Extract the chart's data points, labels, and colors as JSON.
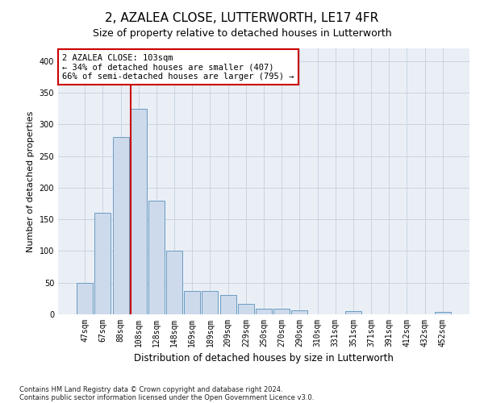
{
  "title": "2, AZALEA CLOSE, LUTTERWORTH, LE17 4FR",
  "subtitle": "Size of property relative to detached houses in Lutterworth",
  "xlabel": "Distribution of detached houses by size in Lutterworth",
  "ylabel": "Number of detached properties",
  "footnote1": "Contains HM Land Registry data © Crown copyright and database right 2024.",
  "footnote2": "Contains public sector information licensed under the Open Government Licence v3.0.",
  "bar_labels": [
    "47sqm",
    "67sqm",
    "88sqm",
    "108sqm",
    "128sqm",
    "148sqm",
    "169sqm",
    "189sqm",
    "209sqm",
    "229sqm",
    "250sqm",
    "270sqm",
    "290sqm",
    "310sqm",
    "331sqm",
    "351sqm",
    "371sqm",
    "391sqm",
    "412sqm",
    "432sqm",
    "452sqm"
  ],
  "bar_values": [
    50,
    160,
    280,
    325,
    180,
    100,
    37,
    37,
    30,
    17,
    9,
    9,
    6,
    0,
    0,
    5,
    0,
    0,
    0,
    0,
    4
  ],
  "bar_color": "#cddaeb",
  "bar_edge_color": "#6a9cc2",
  "annotation_box_text": "2 AZALEA CLOSE: 103sqm\n← 34% of detached houses are smaller (407)\n66% of semi-detached houses are larger (795) →",
  "annotation_box_color": "#ffffff",
  "annotation_box_edge_color": "#cc0000",
  "red_line_color": "#cc0000",
  "grid_color": "#c8d4e0",
  "bg_color": "#eaeff6",
  "ylim": [
    0,
    420
  ],
  "yticks": [
    0,
    50,
    100,
    150,
    200,
    250,
    300,
    350,
    400
  ],
  "red_line_bar_index": 3,
  "title_fontsize": 11,
  "subtitle_fontsize": 9,
  "ylabel_fontsize": 8,
  "xlabel_fontsize": 8.5,
  "tick_fontsize": 7,
  "annotation_fontsize": 7.5,
  "footnote_fontsize": 6
}
